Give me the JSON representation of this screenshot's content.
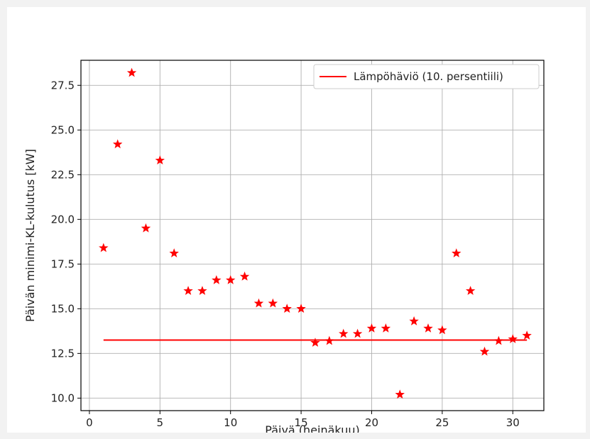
{
  "chart_data": {
    "type": "scatter",
    "xlabel": "Päivä (heinäkuu)",
    "ylabel": "Päivän minimi-KL-kulutus [kW]",
    "xlim": [
      -0.6,
      32.2
    ],
    "ylim": [
      9.3,
      28.9
    ],
    "xticks": [
      0,
      5,
      10,
      15,
      20,
      25,
      30
    ],
    "yticks": [
      10.0,
      12.5,
      15.0,
      17.5,
      20.0,
      22.5,
      25.0,
      27.5
    ],
    "xtick_labels": [
      "0",
      "5",
      "10",
      "15",
      "20",
      "25",
      "30"
    ],
    "ytick_labels": [
      "10.0",
      "12.5",
      "15.0",
      "17.5",
      "20.0",
      "22.5",
      "25.0",
      "27.5"
    ],
    "grid": true,
    "legend_position": "top-right",
    "series": [
      {
        "kind": "scatter",
        "marker": "star",
        "color": "#ff0000",
        "x": [
          1,
          2,
          3,
          4,
          5,
          6,
          7,
          8,
          9,
          10,
          11,
          12,
          13,
          14,
          15,
          16,
          17,
          18,
          19,
          20,
          21,
          22,
          23,
          24,
          25,
          26,
          27,
          28,
          29,
          30,
          31
        ],
        "y": [
          18.4,
          24.2,
          28.2,
          19.5,
          23.3,
          18.1,
          16.0,
          16.0,
          16.6,
          16.6,
          16.8,
          15.3,
          15.3,
          15.0,
          15.0,
          13.1,
          13.2,
          13.6,
          13.6,
          13.9,
          13.9,
          10.2,
          14.3,
          13.9,
          13.8,
          18.1,
          16.0,
          12.6,
          13.2,
          13.3,
          13.5
        ]
      },
      {
        "kind": "line",
        "name": "Lämpöhäviö (10. persentiili)",
        "color": "#ff0000",
        "x": [
          1,
          31
        ],
        "y": [
          13.25,
          13.25
        ]
      }
    ]
  }
}
